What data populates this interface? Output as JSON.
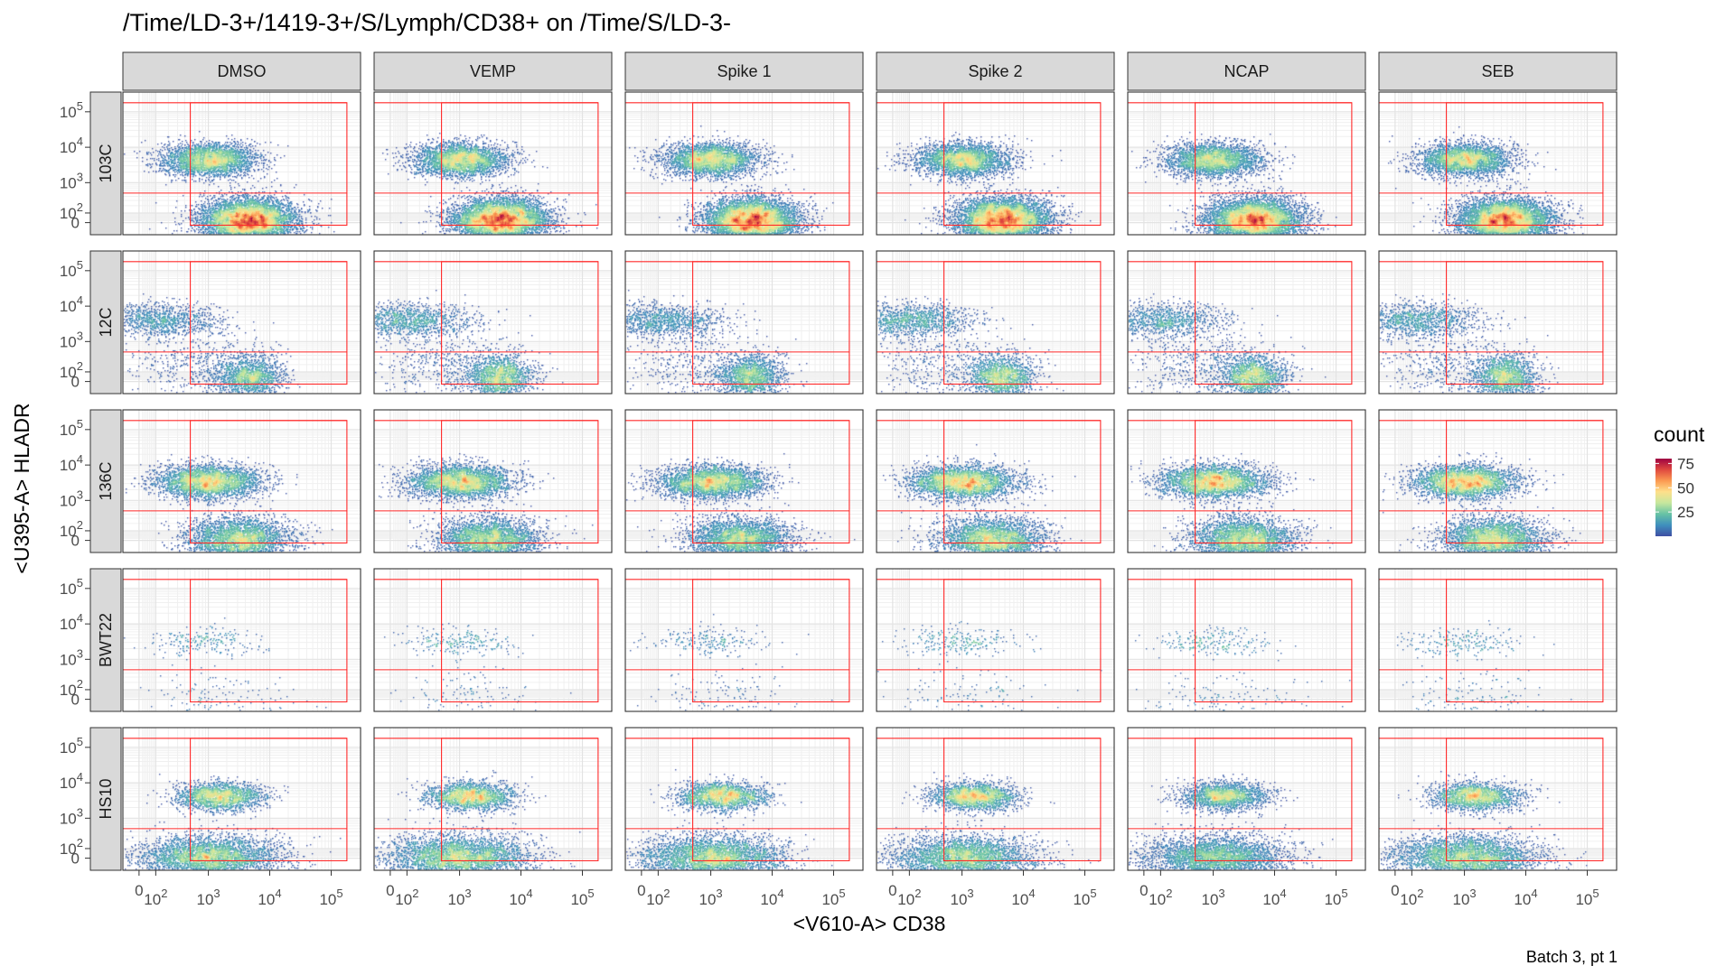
{
  "chart_data": {
    "type": "heatmap",
    "title": "/Time/LD-3+/1419-3+/S/Lymph/CD38+ on /Time/S/LD-3-",
    "xlabel": "<V610-A> CD38",
    "ylabel": "<U395-A> HLADR",
    "caption": "Batch 3, pt 1",
    "columns": [
      "DMSO",
      "VEMP",
      "Spike 1",
      "Spike 2",
      "NCAP",
      "SEB"
    ],
    "rows": [
      "103C",
      "12C",
      "136C",
      "BWT22",
      "HS10"
    ],
    "x_tick_labels": [
      "0",
      "10^2",
      "10^3",
      "10^4",
      "10^5"
    ],
    "y_tick_labels": [
      "0",
      "10^2",
      "10^3",
      "10^4",
      "10^5"
    ],
    "scale": "biexponential",
    "axis_range": [
      -30,
      200000
    ],
    "gates": {
      "cd38_threshold": 500,
      "hladr_threshold": 500,
      "max": 180000
    },
    "legend": {
      "title": "count",
      "ticks": [
        25,
        50,
        75
      ],
      "max": 80,
      "position": "right",
      "colors": [
        "#3f4fa4",
        "#3f8fbd",
        "#66c2a5",
        "#c6e79e",
        "#fee08b",
        "#fb9a52",
        "#e0493f",
        "#9e0142"
      ]
    },
    "populations": {
      "103C": [
        {
          "cd38": 1000,
          "hladr": 4600,
          "weight": 0.33,
          "spread_x": 1.0,
          "spread_y": 0.6
        },
        {
          "cd38": 4500,
          "hladr": 30,
          "weight": 0.67,
          "spread_x": 1.0,
          "spread_y": 0.8
        }
      ],
      "12C": [
        {
          "cd38": 120,
          "hladr": 4200,
          "weight": 0.35,
          "spread_x": 1.3,
          "spread_y": 0.6
        },
        {
          "cd38": 4500,
          "hladr": 50,
          "weight": 0.5,
          "spread_x": 0.7,
          "spread_y": 0.8
        },
        {
          "cd38": 500,
          "hladr": 200,
          "weight": 0.15,
          "spread_x": 1.5,
          "spread_y": 1.4
        }
      ],
      "136C": [
        {
          "cd38": 1000,
          "hladr": 3500,
          "weight": 0.5,
          "spread_x": 1.1,
          "spread_y": 0.6
        },
        {
          "cd38": 3000,
          "hladr": 10,
          "weight": 0.5,
          "spread_x": 1.1,
          "spread_y": 0.8
        }
      ],
      "BWT22": [
        {
          "cd38": 900,
          "hladr": 3200,
          "weight": 0.6,
          "spread_x": 1.2,
          "spread_y": 0.5
        },
        {
          "cd38": 1500,
          "hladr": 20,
          "weight": 0.4,
          "spread_x": 1.6,
          "spread_y": 1.0
        }
      ],
      "HS10": [
        {
          "cd38": 1500,
          "hladr": 4300,
          "weight": 0.35,
          "spread_x": 0.9,
          "spread_y": 0.5
        },
        {
          "cd38": 1000,
          "hladr": 10,
          "weight": 0.65,
          "spread_x": 1.5,
          "spread_y": 0.8
        }
      ]
    },
    "events_per_panel": {
      "103C": 1,
      "12C": 0.35,
      "136C": 0.7,
      "BWT22": 0.04,
      "HS10": 0.6
    },
    "grid": true
  }
}
